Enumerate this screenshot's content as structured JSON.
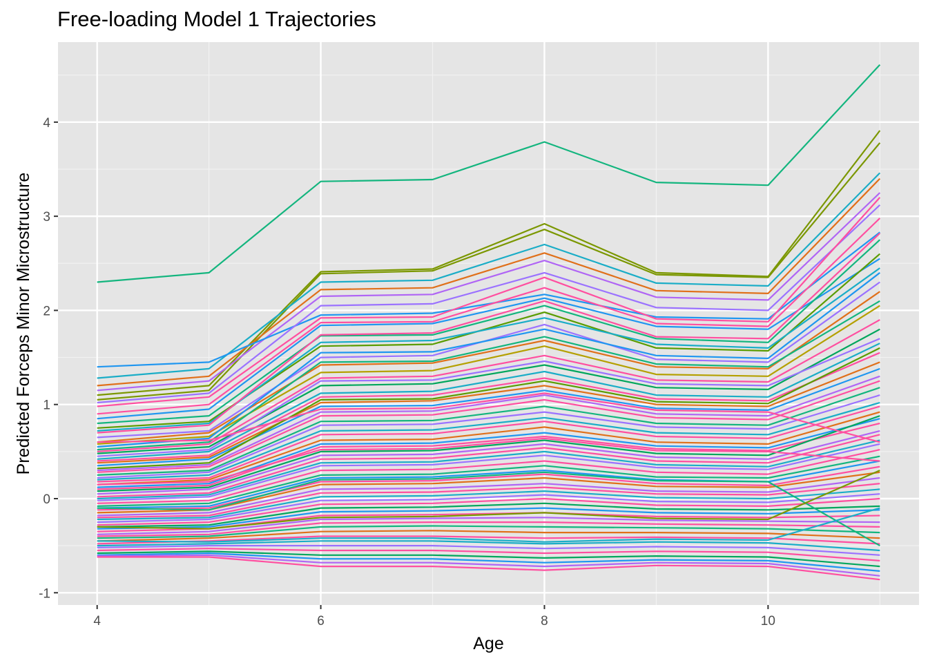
{
  "chart_data": {
    "type": "line",
    "title": "Free-loading Model 1 Trajectories",
    "xlabel": "Age",
    "ylabel": "Predicted Forceps Minor Microstructure",
    "x": [
      4,
      5,
      6,
      7,
      8,
      9,
      10,
      11
    ],
    "xlim": [
      3.65,
      11.35
    ],
    "ylim": [
      -1.13,
      4.85
    ],
    "x_ticks": [
      "4",
      "6",
      "8",
      "10"
    ],
    "y_ticks": [
      "-1",
      "0",
      "1",
      "2",
      "3",
      "4"
    ],
    "grid": true,
    "legend": "none",
    "background": "#e5e5e5",
    "series": [
      {
        "color": "#13b57e",
        "values": [
          2.3,
          2.4,
          3.37,
          3.39,
          3.79,
          3.36,
          3.33,
          4.61
        ]
      },
      {
        "color": "#7b9700",
        "values": [
          1.1,
          1.2,
          2.41,
          2.44,
          2.92,
          2.4,
          2.36,
          3.91
        ]
      },
      {
        "color": "#7b9700",
        "values": [
          1.05,
          1.15,
          2.39,
          2.42,
          2.86,
          2.38,
          2.35,
          3.78
        ]
      },
      {
        "color": "#1aadc7",
        "values": [
          1.28,
          1.38,
          2.3,
          2.32,
          2.7,
          2.29,
          2.26,
          3.46
        ]
      },
      {
        "color": "#e0701a",
        "values": [
          1.2,
          1.3,
          2.22,
          2.24,
          2.61,
          2.21,
          2.18,
          3.4
        ]
      },
      {
        "color": "#b065f5",
        "values": [
          1.15,
          1.25,
          2.15,
          2.17,
          2.53,
          2.14,
          2.11,
          3.25
        ]
      },
      {
        "color": "#1f96f0",
        "values": [
          1.4,
          1.45,
          1.95,
          1.97,
          2.17,
          1.93,
          1.91,
          2.83
        ]
      },
      {
        "color": "#9b72ff",
        "values": [
          1.02,
          1.12,
          2.05,
          2.07,
          2.4,
          2.03,
          2.0,
          3.12
        ]
      },
      {
        "color": "#ff4fa0",
        "values": [
          0.98,
          1.08,
          1.92,
          1.93,
          2.35,
          1.91,
          1.88,
          3.2
        ]
      },
      {
        "color": "#ff4fa0",
        "values": [
          0.9,
          1.0,
          1.87,
          1.88,
          2.24,
          1.86,
          1.83,
          2.98
        ]
      },
      {
        "color": "#1f96f0",
        "values": [
          0.85,
          0.95,
          1.84,
          1.86,
          2.13,
          1.83,
          1.8,
          2.55
        ]
      },
      {
        "color": "#13b57e",
        "values": [
          0.8,
          0.88,
          1.73,
          1.74,
          2.05,
          1.7,
          1.66,
          2.75
        ]
      },
      {
        "color": "#5a9c00",
        "values": [
          0.75,
          0.82,
          1.62,
          1.64,
          1.98,
          1.6,
          1.57,
          2.6
        ]
      },
      {
        "color": "#1aadc7",
        "values": [
          0.72,
          0.8,
          1.66,
          1.68,
          1.92,
          1.64,
          1.6,
          2.45
        ]
      },
      {
        "color": "#ff4fa0",
        "values": [
          0.7,
          0.78,
          1.74,
          1.76,
          2.1,
          1.72,
          1.7,
          2.82
        ]
      },
      {
        "color": "#9b72ff",
        "values": [
          0.65,
          0.72,
          1.5,
          1.52,
          1.85,
          1.48,
          1.45,
          2.3
        ]
      },
      {
        "color": "#e0701a",
        "values": [
          0.6,
          0.7,
          1.42,
          1.44,
          1.68,
          1.4,
          1.38,
          2.2
        ]
      },
      {
        "color": "#b4a000",
        "values": [
          0.58,
          0.66,
          1.34,
          1.36,
          1.62,
          1.32,
          1.3,
          2.05
        ]
      },
      {
        "color": "#1f96f0",
        "values": [
          0.55,
          0.64,
          1.55,
          1.56,
          1.8,
          1.52,
          1.49,
          2.4
        ]
      },
      {
        "color": "#13b57e",
        "values": [
          0.52,
          0.6,
          1.45,
          1.46,
          1.72,
          1.43,
          1.4,
          2.1
        ]
      },
      {
        "color": "#ff4fa0",
        "values": [
          0.5,
          0.58,
          1.28,
          1.3,
          1.52,
          1.26,
          1.24,
          1.9
        ]
      },
      {
        "color": "#00a65c",
        "values": [
          0.48,
          0.55,
          1.2,
          1.22,
          1.42,
          1.18,
          1.16,
          1.8
        ]
      },
      {
        "color": "#9b72ff",
        "values": [
          0.45,
          0.52,
          1.25,
          1.26,
          1.46,
          1.22,
          1.2,
          1.7
        ]
      },
      {
        "color": "#1aadc7",
        "values": [
          0.42,
          0.5,
          1.12,
          1.14,
          1.35,
          1.1,
          1.08,
          1.65
        ]
      },
      {
        "color": "#ff4fa0",
        "values": [
          0.4,
          0.46,
          1.08,
          1.1,
          1.28,
          1.06,
          1.04,
          1.55
        ]
      },
      {
        "color": "#e0701a",
        "values": [
          0.38,
          0.44,
          1.02,
          1.04,
          1.2,
          1.0,
          0.98,
          1.45
        ]
      },
      {
        "color": "#1f96f0",
        "values": [
          0.35,
          0.42,
          0.98,
          0.99,
          1.15,
          0.96,
          0.94,
          1.38
        ]
      },
      {
        "color": "#5a9c00",
        "values": [
          0.32,
          0.38,
          1.05,
          1.06,
          1.25,
          1.03,
          1.01,
          1.6
        ]
      },
      {
        "color": "#b065f5",
        "values": [
          0.3,
          0.36,
          0.92,
          0.93,
          1.1,
          0.9,
          0.88,
          1.3
        ]
      },
      {
        "color": "#ff4fa0",
        "values": [
          0.28,
          0.34,
          0.88,
          0.89,
          1.05,
          0.86,
          0.84,
          1.25
        ]
      },
      {
        "color": "#13b57e",
        "values": [
          0.25,
          0.3,
          0.82,
          0.83,
          0.98,
          0.8,
          0.78,
          1.18
        ]
      },
      {
        "color": "#9b72ff",
        "values": [
          0.22,
          0.28,
          0.78,
          0.79,
          0.92,
          0.76,
          0.74,
          1.1
        ]
      },
      {
        "color": "#1aadc7",
        "values": [
          0.2,
          0.25,
          0.72,
          0.73,
          0.86,
          0.7,
          0.68,
          1.02
        ]
      },
      {
        "color": "#ff4fa0",
        "values": [
          0.18,
          0.22,
          0.68,
          0.69,
          0.82,
          0.66,
          0.64,
          0.98
        ]
      },
      {
        "color": "#e0701a",
        "values": [
          0.15,
          0.2,
          0.62,
          0.63,
          0.76,
          0.6,
          0.58,
          0.92
        ]
      },
      {
        "color": "#1f96f0",
        "values": [
          0.12,
          0.16,
          0.58,
          0.59,
          0.7,
          0.56,
          0.54,
          0.85
        ]
      },
      {
        "color": "#ff4fa0",
        "values": [
          0.1,
          0.14,
          0.55,
          0.56,
          0.66,
          0.53,
          0.51,
          0.8
        ]
      },
      {
        "color": "#00a65c",
        "values": [
          0.08,
          0.12,
          0.5,
          0.51,
          0.62,
          0.48,
          0.46,
          0.88
        ]
      },
      {
        "color": "#b065f5",
        "values": [
          0.05,
          0.1,
          0.46,
          0.47,
          0.58,
          0.44,
          0.42,
          0.72
        ]
      },
      {
        "color": "#ff4fa0",
        "values": [
          0.02,
          0.06,
          0.42,
          0.43,
          0.54,
          0.4,
          0.38,
          0.68
        ]
      },
      {
        "color": "#1aadc7",
        "values": [
          0.0,
          0.04,
          0.38,
          0.39,
          0.5,
          0.36,
          0.34,
          0.62
        ]
      },
      {
        "color": "#9b72ff",
        "values": [
          -0.02,
          0.02,
          0.35,
          0.36,
          0.46,
          0.33,
          0.31,
          0.58
        ]
      },
      {
        "color": "#ff4fa0",
        "values": [
          -0.05,
          -0.02,
          0.3,
          0.31,
          0.4,
          0.28,
          0.26,
          0.52
        ]
      },
      {
        "color": "#13b57e",
        "values": [
          -0.08,
          -0.05,
          0.25,
          0.26,
          0.35,
          0.23,
          0.22,
          0.45
        ]
      },
      {
        "color": "#1f96f0",
        "values": [
          -0.1,
          -0.08,
          0.22,
          0.23,
          0.3,
          0.2,
          0.18,
          0.4
        ]
      },
      {
        "color": "#ff4fa0",
        "values": [
          -0.12,
          -0.1,
          0.18,
          0.19,
          0.26,
          0.16,
          0.14,
          0.34
        ]
      },
      {
        "color": "#e0701a",
        "values": [
          -0.15,
          -0.12,
          0.15,
          0.16,
          0.22,
          0.13,
          0.12,
          0.28
        ]
      },
      {
        "color": "#b065f5",
        "values": [
          -0.18,
          -0.15,
          0.1,
          0.11,
          0.16,
          0.08,
          0.07,
          0.22
        ]
      },
      {
        "color": "#ff4fa0",
        "values": [
          -0.2,
          -0.18,
          0.06,
          0.07,
          0.12,
          0.05,
          0.04,
          0.16
        ]
      },
      {
        "color": "#1aadc7",
        "values": [
          -0.22,
          -0.2,
          0.02,
          0.03,
          0.08,
          0.01,
          0.0,
          0.1
        ]
      },
      {
        "color": "#9b72ff",
        "values": [
          -0.25,
          -0.22,
          -0.02,
          -0.01,
          0.04,
          -0.03,
          -0.04,
          0.05
        ]
      },
      {
        "color": "#ff4fa0",
        "values": [
          -0.28,
          -0.25,
          -0.06,
          -0.05,
          0.0,
          -0.07,
          -0.08,
          0.0
        ]
      },
      {
        "color": "#00a65c",
        "values": [
          -0.3,
          -0.28,
          -0.1,
          -0.09,
          -0.05,
          -0.11,
          -0.12,
          -0.08
        ]
      },
      {
        "color": "#1f96f0",
        "values": [
          -0.32,
          -0.3,
          -0.14,
          -0.13,
          -0.1,
          -0.15,
          -0.16,
          -0.12
        ]
      },
      {
        "color": "#ff4fa0",
        "values": [
          -0.35,
          -0.32,
          -0.18,
          -0.17,
          -0.15,
          -0.19,
          -0.2,
          -0.18
        ]
      },
      {
        "color": "#b065f5",
        "values": [
          -0.38,
          -0.35,
          -0.22,
          -0.21,
          -0.2,
          -0.23,
          -0.24,
          -0.25
        ]
      },
      {
        "color": "#ff4fa0",
        "values": [
          -0.4,
          -0.38,
          -0.26,
          -0.25,
          -0.25,
          -0.27,
          -0.28,
          -0.3
        ]
      },
      {
        "color": "#13b57e",
        "values": [
          -0.42,
          -0.4,
          -0.3,
          -0.29,
          -0.3,
          -0.31,
          -0.32,
          -0.36
        ]
      },
      {
        "color": "#e0701a",
        "values": [
          -0.45,
          -0.42,
          -0.35,
          -0.34,
          -0.36,
          -0.36,
          -0.37,
          -0.42
        ]
      },
      {
        "color": "#ff4fa0",
        "values": [
          -0.48,
          -0.45,
          -0.4,
          -0.4,
          -0.42,
          -0.41,
          -0.42,
          -0.48
        ]
      },
      {
        "color": "#1aadc7",
        "values": [
          -0.5,
          -0.48,
          -0.45,
          -0.45,
          -0.48,
          -0.46,
          -0.47,
          -0.55
        ]
      },
      {
        "color": "#9b72ff",
        "values": [
          -0.52,
          -0.5,
          -0.5,
          -0.5,
          -0.53,
          -0.51,
          -0.52,
          -0.6
        ]
      },
      {
        "color": "#ff4fa0",
        "values": [
          -0.55,
          -0.53,
          -0.55,
          -0.55,
          -0.58,
          -0.56,
          -0.57,
          -0.66
        ]
      },
      {
        "color": "#00a65c",
        "values": [
          -0.58,
          -0.56,
          -0.6,
          -0.6,
          -0.63,
          -0.61,
          -0.62,
          -0.72
        ]
      },
      {
        "color": "#1f96f0",
        "values": [
          -0.6,
          -0.58,
          -0.64,
          -0.64,
          -0.68,
          -0.65,
          -0.66,
          -0.77
        ]
      },
      {
        "color": "#b065f5",
        "values": [
          -0.61,
          -0.6,
          -0.68,
          -0.68,
          -0.72,
          -0.68,
          -0.69,
          -0.82
        ]
      },
      {
        "color": "#ff4fa0",
        "values": [
          -0.62,
          -0.62,
          -0.72,
          -0.72,
          -0.76,
          -0.71,
          -0.72,
          -0.86
        ]
      },
      {
        "color": "#13b57e",
        "values": [
          -0.1,
          -0.12,
          0.2,
          0.21,
          0.28,
          0.19,
          0.18,
          -0.5
        ]
      },
      {
        "color": "#7b9700",
        "values": [
          -0.3,
          -0.32,
          -0.2,
          -0.19,
          -0.15,
          -0.21,
          -0.22,
          0.3
        ]
      },
      {
        "color": "#ff4fa0",
        "values": [
          0.6,
          0.62,
          0.95,
          0.96,
          1.12,
          0.94,
          0.92,
          0.6
        ]
      },
      {
        "color": "#1aadc7",
        "values": [
          -0.45,
          -0.46,
          -0.42,
          -0.42,
          -0.46,
          -0.43,
          -0.44,
          -0.1
        ]
      },
      {
        "color": "#ff4fa0",
        "values": [
          0.15,
          0.18,
          0.52,
          0.53,
          0.64,
          0.51,
          0.5,
          0.4
        ]
      }
    ]
  }
}
